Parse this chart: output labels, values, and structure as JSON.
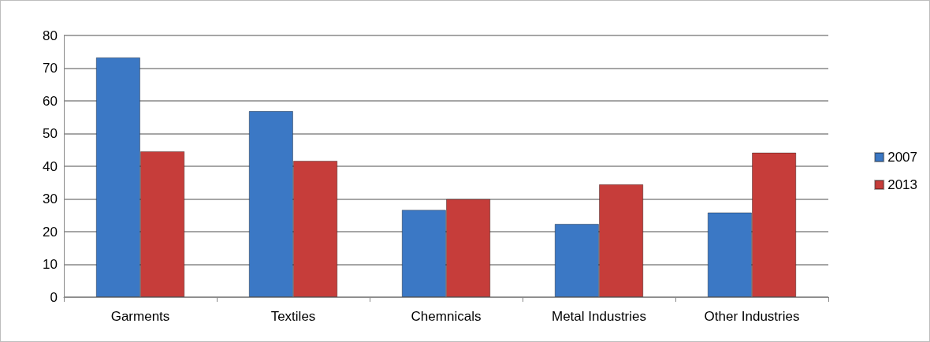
{
  "chart_data": {
    "type": "bar",
    "categories": [
      "Garments",
      "Textiles",
      "Chemnicals",
      "Metal Industries",
      "Other Industries"
    ],
    "series": [
      {
        "name": "2007",
        "color": "#3b78c5",
        "values": [
          73.3,
          56.9,
          26.7,
          22.4,
          25.9
        ]
      },
      {
        "name": "2013",
        "color": "#c63d3a",
        "values": [
          44.6,
          41.7,
          30,
          34.5,
          44.2
        ]
      }
    ],
    "ylim": [
      0,
      80
    ],
    "yticks": [
      0,
      10,
      20,
      30,
      40,
      50,
      60,
      70,
      80
    ],
    "grid": "y",
    "legend": "right"
  }
}
